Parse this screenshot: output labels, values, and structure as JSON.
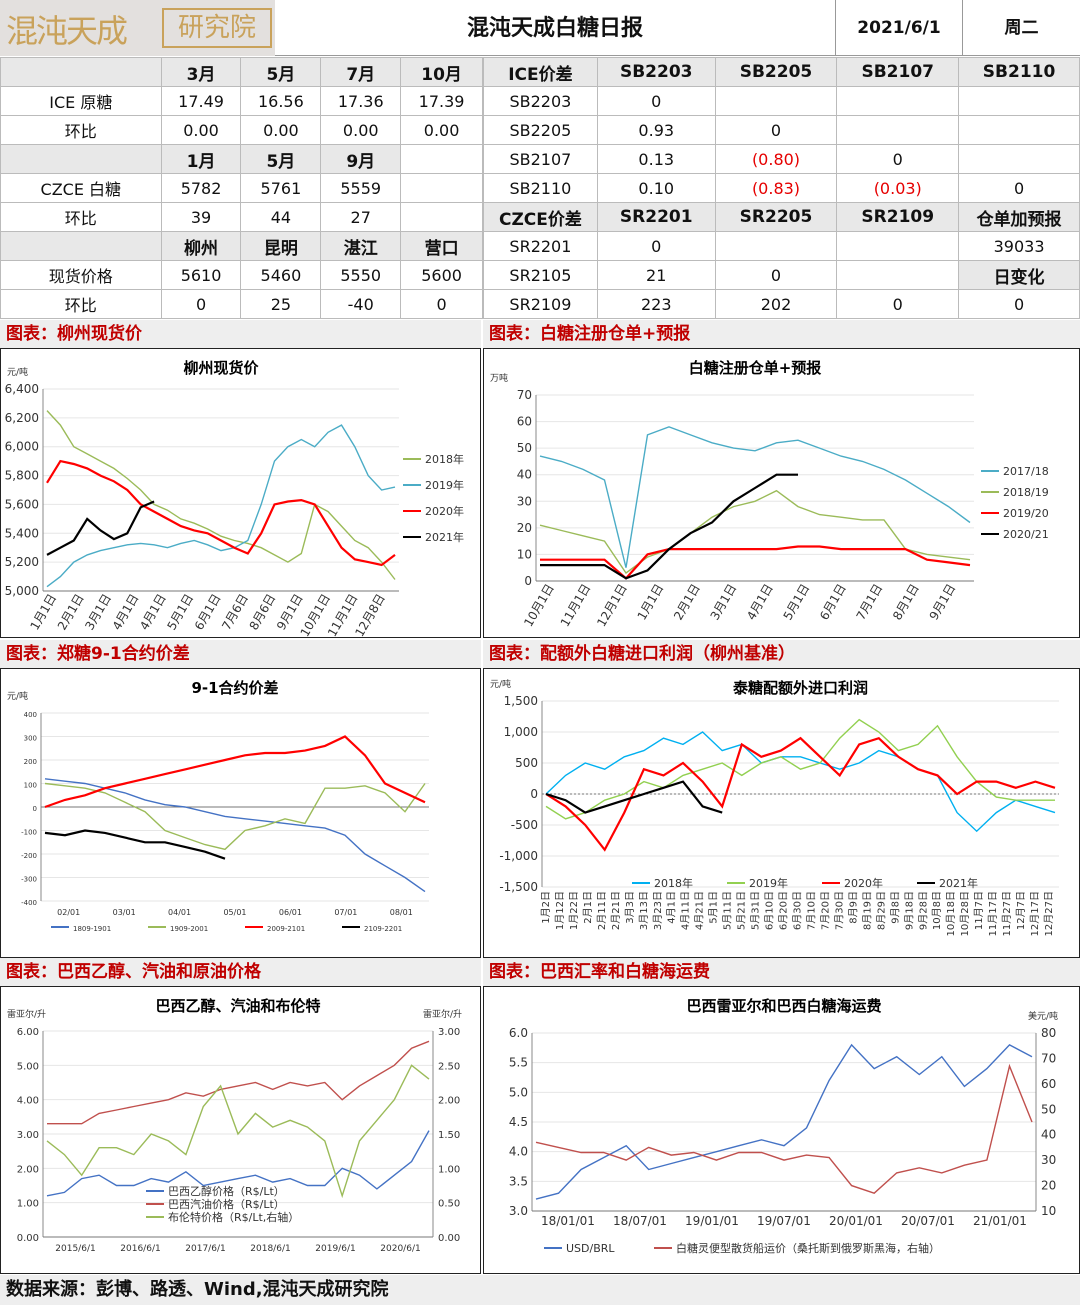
{
  "header": {
    "logo_cn": "混沌天成",
    "logo_sub": "研究院",
    "title": "混沌天成白糖日报",
    "date": "2021/6/1",
    "weekday": "周二"
  },
  "tbl_left": [
    [
      {
        "t": "",
        "c": "h"
      },
      {
        "t": "3月",
        "c": "h"
      },
      {
        "t": "5月",
        "c": "h"
      },
      {
        "t": "7月",
        "c": "h"
      },
      {
        "t": "10月",
        "c": "h"
      }
    ],
    [
      {
        "t": "ICE 原糖"
      },
      {
        "t": "17.49"
      },
      {
        "t": "16.56"
      },
      {
        "t": "17.36"
      },
      {
        "t": "17.39"
      }
    ],
    [
      {
        "t": "环比"
      },
      {
        "t": "0.00"
      },
      {
        "t": "0.00"
      },
      {
        "t": "0.00"
      },
      {
        "t": "0.00"
      }
    ],
    [
      {
        "t": "",
        "c": "h"
      },
      {
        "t": "1月",
        "c": "h"
      },
      {
        "t": "5月",
        "c": "h"
      },
      {
        "t": "9月",
        "c": "h"
      },
      {
        "t": ""
      }
    ],
    [
      {
        "t": "CZCE 白糖"
      },
      {
        "t": "5782"
      },
      {
        "t": "5761"
      },
      {
        "t": "5559"
      },
      {
        "t": ""
      }
    ],
    [
      {
        "t": "环比"
      },
      {
        "t": "39"
      },
      {
        "t": "44"
      },
      {
        "t": "27"
      },
      {
        "t": ""
      }
    ],
    [
      {
        "t": "",
        "c": "h"
      },
      {
        "t": "柳州",
        "c": "h"
      },
      {
        "t": "昆明",
        "c": "h"
      },
      {
        "t": "湛江",
        "c": "h"
      },
      {
        "t": "营口",
        "c": "h"
      }
    ],
    [
      {
        "t": "现货价格"
      },
      {
        "t": "5610"
      },
      {
        "t": "5460"
      },
      {
        "t": "5550"
      },
      {
        "t": "5600"
      }
    ],
    [
      {
        "t": "环比"
      },
      {
        "t": "0"
      },
      {
        "t": "25"
      },
      {
        "t": "-40"
      },
      {
        "t": "0"
      }
    ]
  ],
  "tbl_right": [
    [
      {
        "t": "ICE价差",
        "c": "h"
      },
      {
        "t": "SB2203",
        "c": "h"
      },
      {
        "t": "SB2205",
        "c": "h"
      },
      {
        "t": "SB2107",
        "c": "h"
      },
      {
        "t": "SB2110",
        "c": "h"
      }
    ],
    [
      {
        "t": "SB2203"
      },
      {
        "t": "0"
      },
      {
        "t": ""
      },
      {
        "t": ""
      },
      {
        "t": ""
      }
    ],
    [
      {
        "t": "SB2205"
      },
      {
        "t": "0.93"
      },
      {
        "t": "0"
      },
      {
        "t": ""
      },
      {
        "t": ""
      }
    ],
    [
      {
        "t": "SB2107"
      },
      {
        "t": "0.13"
      },
      {
        "t": "(0.80)",
        "c": "neg"
      },
      {
        "t": "0"
      },
      {
        "t": ""
      }
    ],
    [
      {
        "t": "SB2110"
      },
      {
        "t": "0.10"
      },
      {
        "t": "(0.83)",
        "c": "neg"
      },
      {
        "t": "(0.03)",
        "c": "neg"
      },
      {
        "t": "0"
      }
    ],
    [
      {
        "t": "CZCE价差",
        "c": "h"
      },
      {
        "t": "SR2201",
        "c": "h"
      },
      {
        "t": "SR2205",
        "c": "h"
      },
      {
        "t": "SR2109",
        "c": "h"
      },
      {
        "t": "仓单加预报",
        "c": "h"
      }
    ],
    [
      {
        "t": "SR2201"
      },
      {
        "t": "0"
      },
      {
        "t": ""
      },
      {
        "t": ""
      },
      {
        "t": "39033"
      }
    ],
    [
      {
        "t": "SR2105"
      },
      {
        "t": "21"
      },
      {
        "t": "0"
      },
      {
        "t": ""
      },
      {
        "t": "日变化",
        "c": "h"
      }
    ],
    [
      {
        "t": "SR2109"
      },
      {
        "t": "223"
      },
      {
        "t": "202"
      },
      {
        "t": "0"
      },
      {
        "t": "0"
      }
    ]
  ],
  "sections": {
    "s1": "图表：柳州现货价",
    "s2": "图表：白糖注册仓单+预报",
    "s3": "图表：郑糖9-1合约价差",
    "s4": "图表：配额外白糖进口利润（柳州基准）",
    "s5": "图表：巴西乙醇、汽油和原油价格",
    "s6": "图表：巴西汇率和白糖海运费"
  },
  "footer": "数据来源：彭博、路透、Wind,混沌天成研究院",
  "chart_data": [
    {
      "id": "c1",
      "type": "line",
      "title": "柳州现货价",
      "ylabel": "元/吨",
      "ylim": [
        5000,
        6400
      ],
      "yticks": [
        "5,000",
        "5,200",
        "5,400",
        "5,600",
        "5,800",
        "6,000",
        "6,200",
        "6,400"
      ],
      "xlabels": [
        "1月1日",
        "2月1日",
        "3月1日",
        "4月1日",
        "4月1日",
        "5月1日",
        "6月1日",
        "7月6日",
        "8月6日",
        "9月1日",
        "10月1日",
        "11月1日",
        "12月8日"
      ],
      "series": [
        {
          "name": "2018年",
          "color": "#9bbb59",
          "values": [
            6250,
            6150,
            6000,
            5950,
            5900,
            5850,
            5780,
            5700,
            5600,
            5560,
            5500,
            5470,
            5430,
            5380,
            5350,
            5330,
            5300,
            5250,
            5200,
            5260,
            5600,
            5550,
            5450,
            5350,
            5300,
            5200,
            5080
          ]
        },
        {
          "name": "2019年",
          "color": "#4bacc6",
          "values": [
            5030,
            5100,
            5200,
            5250,
            5280,
            5300,
            5320,
            5330,
            5320,
            5300,
            5330,
            5350,
            5320,
            5280,
            5300,
            5350,
            5600,
            5900,
            6000,
            6050,
            6000,
            6100,
            6150,
            6000,
            5800,
            5700,
            5720
          ]
        },
        {
          "name": "2020年",
          "color": "#ff0000",
          "values": [
            5750,
            5900,
            5880,
            5850,
            5800,
            5760,
            5700,
            5600,
            5550,
            5500,
            5450,
            5420,
            5400,
            5350,
            5300,
            5260,
            5400,
            5600,
            5620,
            5630,
            5600,
            5450,
            5300,
            5220,
            5200,
            5180,
            5250
          ]
        },
        {
          "name": "2021年",
          "color": "#000000",
          "values": [
            5250,
            5300,
            5350,
            5500,
            5420,
            5360,
            5400,
            5580,
            5620
          ]
        }
      ]
    },
    {
      "id": "c2",
      "type": "line",
      "title": "白糖注册仓单+预报",
      "ylabel": "万吨",
      "ylim": [
        0,
        70
      ],
      "yticks": [
        "0",
        "10",
        "20",
        "30",
        "40",
        "50",
        "60",
        "70"
      ],
      "xlabels": [
        "10月1日",
        "11月1日",
        "12月1日",
        "1月1日",
        "2月1日",
        "3月1日",
        "4月1日",
        "5月1日",
        "6月1日",
        "7月1日",
        "8月1日",
        "9月1日"
      ],
      "series": [
        {
          "name": "2017/18",
          "color": "#4bacc6",
          "values": [
            47,
            45,
            42,
            38,
            5,
            55,
            58,
            55,
            52,
            50,
            49,
            52,
            53,
            50,
            47,
            45,
            42,
            38,
            33,
            28,
            22
          ]
        },
        {
          "name": "2018/19",
          "color": "#9bbb59",
          "values": [
            21,
            19,
            17,
            15,
            3,
            9,
            12,
            18,
            24,
            28,
            30,
            34,
            28,
            25,
            24,
            23,
            23,
            12,
            10,
            9,
            8
          ]
        },
        {
          "name": "2019/20",
          "color": "#ff0000",
          "values": [
            8,
            8,
            8,
            8,
            1,
            10,
            12,
            12,
            12,
            12,
            12,
            12,
            13,
            13,
            12,
            12,
            12,
            12,
            8,
            7,
            6
          ]
        },
        {
          "name": "2020/21",
          "color": "#000000",
          "values": [
            6,
            6,
            6,
            6,
            1,
            4,
            12,
            18,
            22,
            30,
            35,
            40,
            40
          ]
        }
      ]
    },
    {
      "id": "c3",
      "type": "line",
      "title": "9-1合约价差",
      "ylabel": "元/吨",
      "ylim": [
        -400,
        400
      ],
      "yticks": [
        "-400",
        "-300",
        "-200",
        "-100",
        "0",
        "100",
        "200",
        "300",
        "400"
      ],
      "xlabels": [
        "02/01",
        "03/01",
        "04/01",
        "05/01",
        "06/01",
        "07/01",
        "08/01"
      ],
      "series": [
        {
          "name": "1809-1901",
          "color": "#4472c4",
          "values": [
            120,
            110,
            100,
            80,
            60,
            30,
            10,
            0,
            -20,
            -40,
            -50,
            -60,
            -70,
            -80,
            -90,
            -120,
            -200,
            -250,
            -300,
            -360
          ]
        },
        {
          "name": "1909-2001",
          "color": "#9bbb59",
          "values": [
            100,
            90,
            80,
            60,
            20,
            -20,
            -100,
            -130,
            -160,
            -180,
            -100,
            -80,
            -50,
            -70,
            80,
            80,
            90,
            60,
            -20,
            100
          ]
        },
        {
          "name": "2009-2101",
          "color": "#ff0000",
          "values": [
            0,
            30,
            50,
            80,
            100,
            120,
            140,
            160,
            180,
            200,
            220,
            230,
            230,
            240,
            260,
            300,
            220,
            100,
            60,
            20
          ]
        },
        {
          "name": "2109-2201",
          "color": "#000000",
          "values": [
            -110,
            -120,
            -100,
            -110,
            -130,
            -150,
            -150,
            -170,
            -190,
            -220
          ]
        }
      ]
    },
    {
      "id": "c4",
      "type": "line",
      "title": "泰糖配额外进口利润",
      "ylabel": "元/吨",
      "ylim": [
        -1500,
        1500
      ],
      "yticks": [
        "-1,500",
        "-1,000",
        "-500",
        "0",
        "500",
        "1,000",
        "1,500"
      ],
      "xlabels": [
        "1月2日",
        "1月12日",
        "1月22日",
        "2月1日",
        "2月11日",
        "2月21日",
        "3月3日",
        "3月13日",
        "3月23日",
        "4月1日",
        "4月11日",
        "4月21日",
        "5月1日",
        "5月11日",
        "5月21日",
        "5月31日",
        "6月10日",
        "6月20日",
        "6月30日",
        "7月10日",
        "7月20日",
        "7月30日",
        "8月9日",
        "8月19日",
        "8月29日",
        "9月8日",
        "9月18日",
        "9月28日",
        "10月8日",
        "10月18日",
        "10月28日",
        "11月7日",
        "11月17日",
        "11月27日",
        "12月7日",
        "12月17日",
        "12月27日"
      ],
      "series": [
        {
          "name": "2018年",
          "color": "#00b0f0",
          "values": [
            0,
            300,
            500,
            400,
            600,
            700,
            900,
            800,
            1000,
            700,
            800,
            500,
            600,
            600,
            500,
            400,
            500,
            700,
            600,
            400,
            300,
            -300,
            -600,
            -300,
            -100,
            -200,
            -300
          ]
        },
        {
          "name": "2019年",
          "color": "#92d050",
          "values": [
            -200,
            -400,
            -300,
            -100,
            0,
            200,
            100,
            300,
            400,
            500,
            300,
            500,
            600,
            400,
            500,
            900,
            1200,
            1000,
            700,
            800,
            1100,
            600,
            200,
            -50,
            -100,
            -100,
            -100
          ]
        },
        {
          "name": "2020年",
          "color": "#ff0000",
          "values": [
            0,
            -200,
            -500,
            -900,
            -300,
            400,
            300,
            500,
            200,
            -200,
            800,
            600,
            700,
            900,
            600,
            300,
            800,
            900,
            600,
            400,
            300,
            0,
            200,
            200,
            100,
            200,
            100
          ]
        },
        {
          "name": "2021年",
          "color": "#000000",
          "values": [
            0,
            -100,
            -300,
            -200,
            -100,
            0,
            100,
            200,
            -200,
            -300
          ]
        }
      ]
    },
    {
      "id": "c5",
      "type": "line",
      "title": "巴西乙醇、汽油和布伦特",
      "ylabel": "雷亚尔/升",
      "y2label": "雷亚尔/升",
      "ylim": [
        0,
        6
      ],
      "y2lim": [
        0,
        3
      ],
      "yticks": [
        "0.00",
        "1.00",
        "2.00",
        "3.00",
        "4.00",
        "5.00",
        "6.00"
      ],
      "y2ticks": [
        "0.00",
        "0.50",
        "1.00",
        "1.50",
        "2.00",
        "2.50",
        "3.00"
      ],
      "xlabels": [
        "2015/6/1",
        "2016/6/1",
        "2017/6/1",
        "2018/6/1",
        "2019/6/1",
        "2020/6/1"
      ],
      "series": [
        {
          "name": "巴西乙醇价格（R$/Lt）",
          "color": "#4472c4",
          "axis": "left",
          "values": [
            1.2,
            1.3,
            1.7,
            1.8,
            1.5,
            1.5,
            1.7,
            1.6,
            1.9,
            1.5,
            1.6,
            1.7,
            1.8,
            1.6,
            1.7,
            1.5,
            1.5,
            2.0,
            1.8,
            1.4,
            1.8,
            2.2,
            3.1
          ]
        },
        {
          "name": "巴西汽油价格（R$/Lt）",
          "color": "#c0504d",
          "axis": "left",
          "values": [
            3.3,
            3.3,
            3.3,
            3.6,
            3.7,
            3.8,
            3.9,
            4.0,
            4.2,
            4.1,
            4.3,
            4.4,
            4.5,
            4.3,
            4.5,
            4.4,
            4.5,
            4.0,
            4.4,
            4.7,
            5.0,
            5.5,
            5.7
          ]
        },
        {
          "name": "布伦特价格（R$/Lt,右轴）",
          "color": "#9bbb59",
          "axis": "right",
          "values": [
            1.4,
            1.2,
            0.9,
            1.3,
            1.3,
            1.2,
            1.5,
            1.4,
            1.2,
            1.9,
            2.2,
            1.5,
            1.8,
            1.6,
            1.7,
            1.6,
            1.4,
            0.6,
            1.4,
            1.7,
            2.0,
            2.5,
            2.3
          ]
        }
      ]
    },
    {
      "id": "c6",
      "type": "line",
      "title": "巴西雷亚尔和巴西白糖海运费",
      "y2label": "美元/吨",
      "ylim": [
        3.0,
        6.0
      ],
      "y2lim": [
        10,
        80
      ],
      "yticks": [
        "3.0",
        "3.5",
        "4.0",
        "4.5",
        "5.0",
        "5.5",
        "6.0"
      ],
      "y2ticks": [
        "10",
        "20",
        "30",
        "40",
        "50",
        "60",
        "70",
        "80"
      ],
      "xlabels": [
        "18/01/01",
        "18/07/01",
        "19/01/01",
        "19/07/01",
        "20/01/01",
        "20/07/01",
        "21/01/01"
      ],
      "series": [
        {
          "name": "USD/BRL",
          "color": "#4472c4",
          "axis": "left",
          "values": [
            3.2,
            3.3,
            3.7,
            3.9,
            4.1,
            3.7,
            3.8,
            3.9,
            4.0,
            4.1,
            4.2,
            4.1,
            4.4,
            5.2,
            5.8,
            5.4,
            5.6,
            5.3,
            5.6,
            5.1,
            5.4,
            5.8,
            5.6
          ]
        },
        {
          "name": "白糖灵便型散货船运价（桑托斯到俄罗斯黑海，右轴）",
          "color": "#c0504d",
          "axis": "right",
          "values": [
            37,
            35,
            33,
            33,
            30,
            35,
            32,
            33,
            30,
            33,
            33,
            30,
            32,
            31,
            20,
            17,
            25,
            27,
            25,
            28,
            30,
            67,
            45
          ]
        }
      ]
    }
  ]
}
